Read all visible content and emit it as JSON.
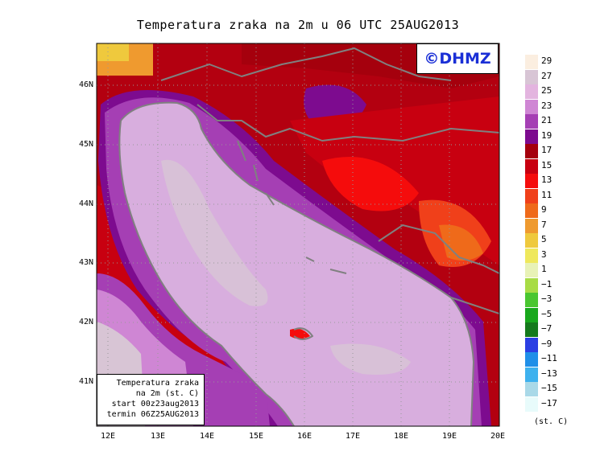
{
  "title": "Temperatura zraka na 2m u 06 UTC 25AUG2013",
  "logo": "©DHMZ",
  "info": {
    "line1": "Temperatura zraka",
    "line2": "na 2m (st. C)",
    "line3": "start 00z23aug2013",
    "line4": "termin 06Z25AUG2013"
  },
  "lat_labels": [
    "46N",
    "45N",
    "44N",
    "43N",
    "42N",
    "41N"
  ],
  "lon_labels": [
    "12E",
    "13E",
    "14E",
    "15E",
    "16E",
    "17E",
    "18E",
    "19E",
    "20E"
  ],
  "legend": {
    "levels": [
      "29",
      "27",
      "25",
      "23",
      "21",
      "19",
      "17",
      "15",
      "13",
      "11",
      "9",
      "7",
      "5",
      "3",
      "1",
      "−1",
      "−3",
      "−5",
      "−7",
      "−9",
      "−11",
      "−13",
      "−15",
      "−17"
    ],
    "colors": [
      "#fbeee0",
      "#d8c5d5",
      "#e3b4df",
      "#cf86d4",
      "#a53fb4",
      "#7d0b8f",
      "#a5000d",
      "#c80010",
      "#f50c0c",
      "#f0401a",
      "#ef6a1a",
      "#ef9a2f",
      "#efc93d",
      "#efe85c",
      "#e8f2b6",
      "#a8dc45",
      "#49c630",
      "#18a81c",
      "#157a1c",
      "#2b3fe3",
      "#1f8fe8",
      "#3eb1ee",
      "#a9d9e8",
      "#e8fbfb"
    ],
    "unit": "(st. C)"
  },
  "colors": {
    "sea": "#d8aede",
    "land": "#b30010",
    "coast": "#808080"
  }
}
